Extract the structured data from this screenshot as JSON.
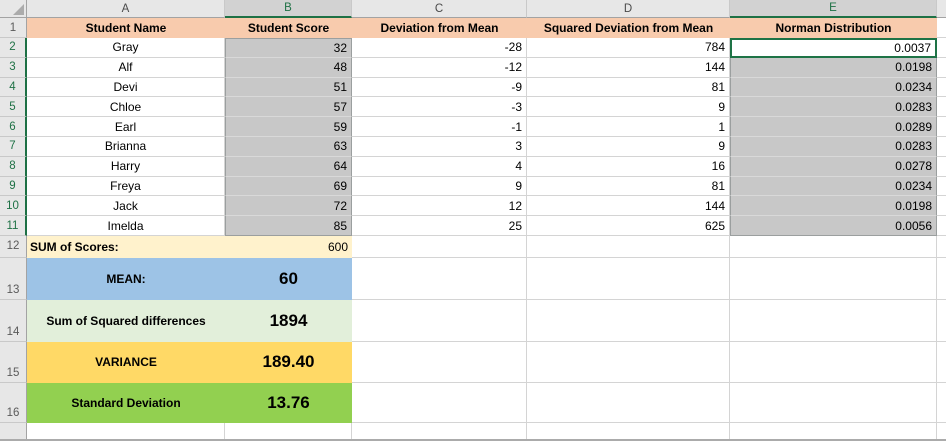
{
  "columns": [
    "A",
    "B",
    "C",
    "D",
    "E"
  ],
  "row_numbers": [
    "1",
    "2",
    "3",
    "4",
    "5",
    "6",
    "7",
    "8",
    "9",
    "10",
    "11",
    "12",
    "13",
    "14",
    "15",
    "16"
  ],
  "headers": [
    "Student Name",
    "Student Score",
    "Deviation from Mean",
    "Squared Deviation from Mean",
    "Norman Distribution"
  ],
  "students": [
    {
      "name": "Gray",
      "score": "32",
      "deviation": "-28",
      "squared": "784",
      "norman": "0.0037"
    },
    {
      "name": "Alf",
      "score": "48",
      "deviation": "-12",
      "squared": "144",
      "norman": "0.0198"
    },
    {
      "name": "Devi",
      "score": "51",
      "deviation": "-9",
      "squared": "81",
      "norman": "0.0234"
    },
    {
      "name": "Chloe",
      "score": "57",
      "deviation": "-3",
      "squared": "9",
      "norman": "0.0283"
    },
    {
      "name": "Earl",
      "score": "59",
      "deviation": "-1",
      "squared": "1",
      "norman": "0.0289"
    },
    {
      "name": "Brianna",
      "score": "63",
      "deviation": "3",
      "squared": "9",
      "norman": "0.0283"
    },
    {
      "name": "Harry",
      "score": "64",
      "deviation": "4",
      "squared": "16",
      "norman": "0.0278"
    },
    {
      "name": "Freya",
      "score": "69",
      "deviation": "9",
      "squared": "81",
      "norman": "0.0234"
    },
    {
      "name": "Jack",
      "score": "72",
      "deviation": "12",
      "squared": "144",
      "norman": "0.0198"
    },
    {
      "name": "Imelda",
      "score": "85",
      "deviation": "25",
      "squared": "625",
      "norman": "0.0056"
    }
  ],
  "summary": {
    "sum_label": "SUM of Scores:",
    "sum_value": "600",
    "mean_label": "MEAN:",
    "mean_value": "60",
    "squared_diff_label": "Sum of Squared differences",
    "squared_diff_value": "1894",
    "variance_label": "VARIANCE",
    "variance_value": "189.40",
    "stdev_label": "Standard Deviation",
    "stdev_value": "13.76"
  },
  "selection": {
    "selected_columns": "B, E",
    "selected_ranges": "B2:B11, E2:E11",
    "active_cell": "E2"
  },
  "colors": {
    "header_row_fill": "#F8CBAD",
    "sum_row_fill": "#FFF2CC",
    "mean_row_fill": "#9DC3E6",
    "squared_diff_row_fill": "#E2EFDA",
    "variance_row_fill": "#FFD966",
    "stdev_row_fill": "#92D050",
    "selection_fill": "#C8C8C8",
    "excel_green": "#1E7145",
    "header_strip_fill": "#E7E7E7"
  }
}
